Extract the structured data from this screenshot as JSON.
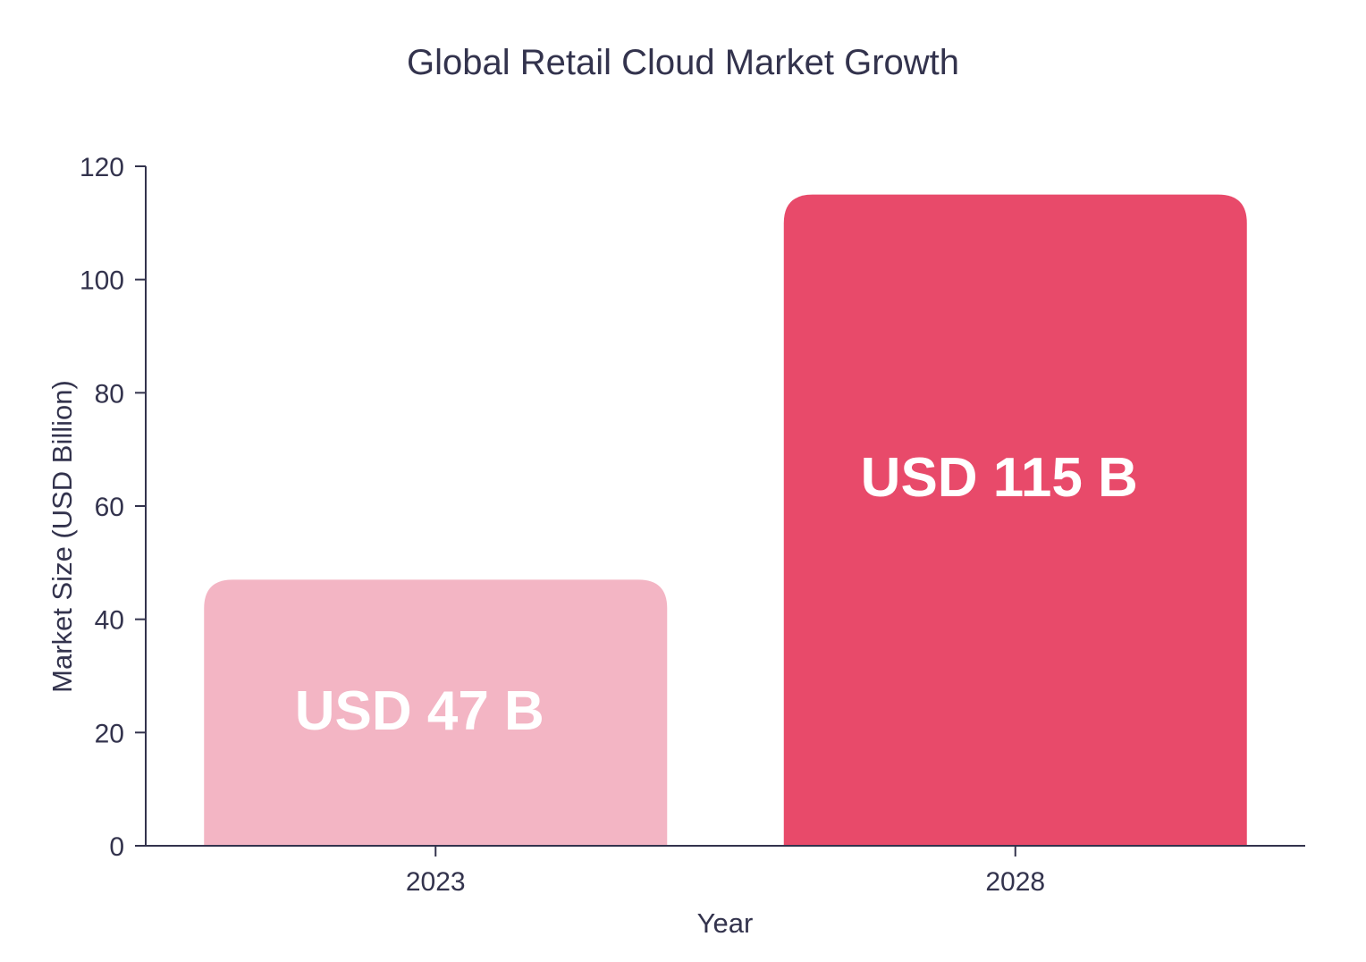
{
  "chart_data": {
    "type": "bar",
    "title": "Global Retail Cloud Market Growth",
    "xlabel": "Year",
    "ylabel": "Market Size (USD Billion)",
    "categories": [
      "2023",
      "2028"
    ],
    "values": [
      47,
      115
    ],
    "data_labels": [
      "USD 47 B",
      "USD 115 B"
    ],
    "bar_colors": [
      "#f3b5c4",
      "#e84a6a"
    ],
    "ylim": [
      0,
      120
    ],
    "yticks": [
      0,
      20,
      40,
      60,
      80,
      100,
      120
    ],
    "grid": false,
    "legend": "none"
  },
  "colors": {
    "axis": "#33334d",
    "text": "#33334d",
    "background": "#ffffff"
  }
}
